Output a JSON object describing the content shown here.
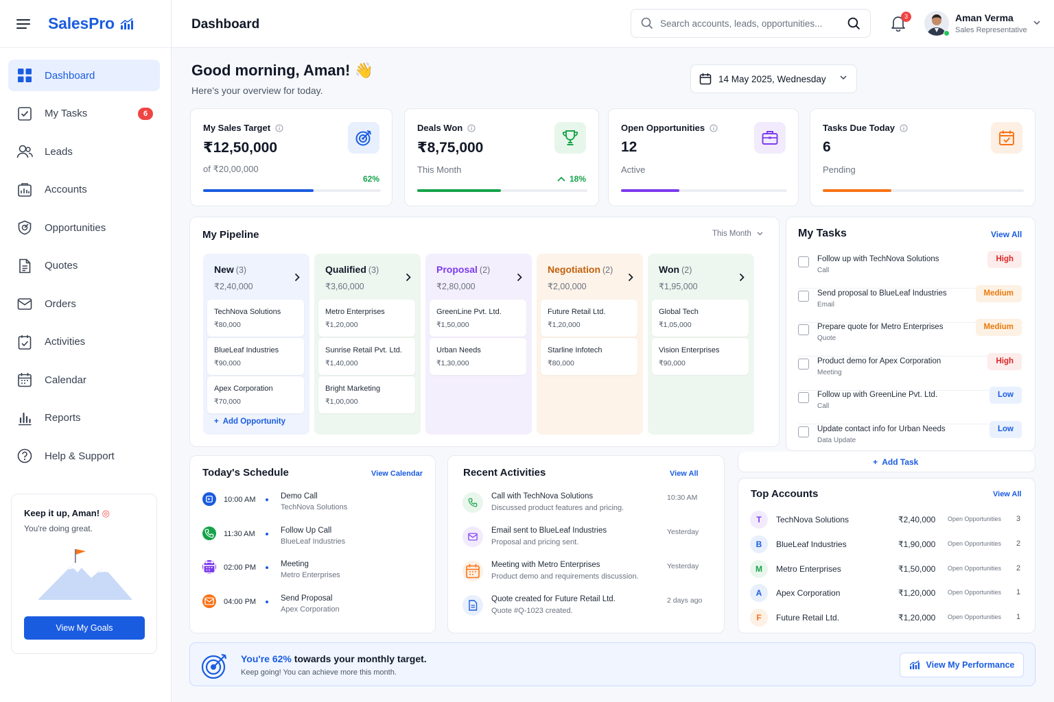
{
  "app": {
    "name": "SalesPro"
  },
  "header": {
    "title": "Dashboard",
    "search_placeholder": "Search accounts, leads, opportunities...",
    "notification_count": "3",
    "user": {
      "name": "Aman Verma",
      "role": "Sales Representative"
    }
  },
  "sidebar": {
    "items": [
      {
        "label": "Dashboard",
        "icon": "dashboard-icon",
        "active": true
      },
      {
        "label": "My Tasks",
        "icon": "tasks-icon",
        "badge": "6"
      },
      {
        "label": "Leads",
        "icon": "leads-icon"
      },
      {
        "label": "Accounts",
        "icon": "accounts-icon"
      },
      {
        "label": "Opportunities",
        "icon": "opportunities-icon"
      },
      {
        "label": "Quotes",
        "icon": "quotes-icon"
      },
      {
        "label": "Orders",
        "icon": "orders-icon"
      },
      {
        "label": "Activities",
        "icon": "activities-icon"
      },
      {
        "label": "Calendar",
        "icon": "calendar-icon"
      },
      {
        "label": "Reports",
        "icon": "reports-icon"
      },
      {
        "label": "Help & Support",
        "icon": "help-icon"
      }
    ],
    "promo": {
      "title": "Keep it up, Aman!",
      "subtitle": "You're doing great.",
      "button": "View My Goals"
    }
  },
  "greeting": {
    "title": "Good morning, Aman! 👋",
    "subtitle": "Here's your overview for today."
  },
  "date_selector": {
    "value": "14 May 2025, Wednesday"
  },
  "kpis": [
    {
      "title": "My Sales Target",
      "value": "₹12,50,000",
      "sub": "of ₹20,00,000",
      "badge": "62%",
      "progress": 0.62,
      "color": "#1a5ce0"
    },
    {
      "title": "Deals Won",
      "value": "₹8,75,000",
      "sub": "This Month",
      "badge": "18%",
      "progress": 0.49,
      "color": "#16a34a"
    },
    {
      "title": "Open Opportunities",
      "value": "12",
      "sub": "Active",
      "progress": 0.35,
      "color": "#7c3aed"
    },
    {
      "title": "Tasks Due Today",
      "value": "6",
      "sub": "Pending",
      "progress": 0.34,
      "color": "#f97316"
    }
  ],
  "pipeline": {
    "title": "My Pipeline",
    "filter": "This Month",
    "add_label": "Add Opportunity",
    "stages": [
      {
        "name": "New",
        "count": "(3)",
        "amount": "₹2,40,000",
        "color": "#111827",
        "bg": "#eef3fd",
        "deals": [
          {
            "name": "TechNova Solutions",
            "amount": "₹80,000"
          },
          {
            "name": "BlueLeaf Industries",
            "amount": "₹90,000"
          },
          {
            "name": "Apex Corporation",
            "amount": "₹70,000"
          }
        ]
      },
      {
        "name": "Qualified",
        "count": "(3)",
        "amount": "₹3,60,000",
        "color": "#111827",
        "bg": "#eef6f0",
        "deals": [
          {
            "name": "Metro Enterprises",
            "amount": "₹1,20,000"
          },
          {
            "name": "Sunrise Retail Pvt. Ltd.",
            "amount": "₹1,40,000"
          },
          {
            "name": "Bright Marketing",
            "amount": "₹1,00,000"
          }
        ]
      },
      {
        "name": "Proposal",
        "count": "(2)",
        "amount": "₹2,80,000",
        "color": "#7c3aed",
        "bg": "#f4effd",
        "deals": [
          {
            "name": "GreenLine Pvt. Ltd.",
            "amount": "₹1,50,000"
          },
          {
            "name": "Urban Needs",
            "amount": "₹1,30,000"
          }
        ]
      },
      {
        "name": "Negotiation",
        "count": "(2)",
        "amount": "₹2,00,000",
        "color": "#c2610c",
        "bg": "#fdf3e9",
        "deals": [
          {
            "name": "Future Retail Ltd.",
            "amount": "₹1,20,000"
          },
          {
            "name": "Starline Infotech",
            "amount": "₹80,000"
          }
        ]
      },
      {
        "name": "Won",
        "count": "(2)",
        "amount": "₹1,95,000",
        "color": "#111827",
        "bg": "#eef7ef",
        "deals": [
          {
            "name": "Global Tech",
            "amount": "₹1,05,000"
          },
          {
            "name": "Vision Enterprises",
            "amount": "₹90,000"
          }
        ]
      }
    ]
  },
  "tasks": {
    "title": "My Tasks",
    "view_all": "View All",
    "add_label": "Add Task",
    "items": [
      {
        "title": "Follow up with TechNova Solutions",
        "type": "Call",
        "priority": "High"
      },
      {
        "title": "Send proposal to BlueLeaf Industries",
        "type": "Email",
        "priority": "Medium"
      },
      {
        "title": "Prepare quote for Metro Enterprises",
        "type": "Quote",
        "priority": "Medium"
      },
      {
        "title": "Product demo for Apex Corporation",
        "type": "Meeting",
        "priority": "High"
      },
      {
        "title": "Follow up with GreenLine Pvt. Ltd.",
        "type": "Call",
        "priority": "Low"
      },
      {
        "title": "Update contact info for Urban Needs",
        "type": "Data Update",
        "priority": "Low"
      }
    ]
  },
  "schedule": {
    "title": "Today's Schedule",
    "link": "View Calendar",
    "items": [
      {
        "time": "10:00 AM",
        "title": "Demo Call",
        "sub": "TechNova Solutions",
        "color": "#1a5ce0",
        "icon": "video-icon"
      },
      {
        "time": "11:30 AM",
        "title": "Follow Up Call",
        "sub": "BlueLeaf Industries",
        "color": "#16a34a",
        "icon": "phone-icon"
      },
      {
        "time": "02:00 PM",
        "title": "Meeting",
        "sub": "Metro Enterprises",
        "color": "#7c3aed",
        "icon": "calendar-icon"
      },
      {
        "time": "04:00 PM",
        "title": "Send Proposal",
        "sub": "Apex Corporation",
        "color": "#f97316",
        "icon": "mail-icon"
      }
    ]
  },
  "activities": {
    "title": "Recent Activities",
    "link": "View All",
    "items": [
      {
        "title": "Call with TechNova Solutions",
        "sub": "Discussed product features and pricing.",
        "when": "10:30 AM",
        "icon": "phone-icon",
        "color": "#16a34a",
        "bg": "#e8f6ec"
      },
      {
        "title": "Email sent to BlueLeaf Industries",
        "sub": "Proposal and pricing sent.",
        "when": "Yesterday",
        "icon": "mail-icon",
        "color": "#7c3aed",
        "bg": "#f1ebfd"
      },
      {
        "title": "Meeting with Metro Enterprises",
        "sub": "Product demo and requirements discussion.",
        "when": "Yesterday",
        "icon": "calendar-icon",
        "color": "#f97316",
        "bg": "#fdf0e4"
      },
      {
        "title": "Quote created for Future Retail Ltd.",
        "sub": "Quote #Q-1023 created.",
        "when": "2 days ago",
        "icon": "document-icon",
        "color": "#1a5ce0",
        "bg": "#e8effd"
      }
    ]
  },
  "top_accounts": {
    "title": "Top Accounts",
    "link": "View All",
    "items": [
      {
        "initial": "T",
        "name": "TechNova Solutions",
        "amount": "₹2,40,000",
        "label": "Open Opportunities",
        "count": "3",
        "color": "#7c3aed",
        "bg": "#f1ebfd"
      },
      {
        "initial": "B",
        "name": "BlueLeaf Industries",
        "amount": "₹1,90,000",
        "label": "Open Opportunities",
        "count": "2",
        "color": "#1a5ce0",
        "bg": "#e8effd"
      },
      {
        "initial": "M",
        "name": "Metro Enterprises",
        "amount": "₹1,50,000",
        "label": "Open Opportunities",
        "count": "2",
        "color": "#16a34a",
        "bg": "#e8f6ec"
      },
      {
        "initial": "A",
        "name": "Apex Corporation",
        "amount": "₹1,20,000",
        "label": "Open Opportunities",
        "count": "1",
        "color": "#1a5ce0",
        "bg": "#e8effd"
      },
      {
        "initial": "F",
        "name": "Future Retail Ltd.",
        "amount": "₹1,20,000",
        "label": "Open Opportunities",
        "count": "1",
        "color": "#f97316",
        "bg": "#fdf0e4"
      }
    ]
  },
  "banner": {
    "pct": "You're 62%",
    "rest": " towards your monthly target.",
    "sub": "Keep going! You can achieve more this month.",
    "button": "View My Performance"
  }
}
